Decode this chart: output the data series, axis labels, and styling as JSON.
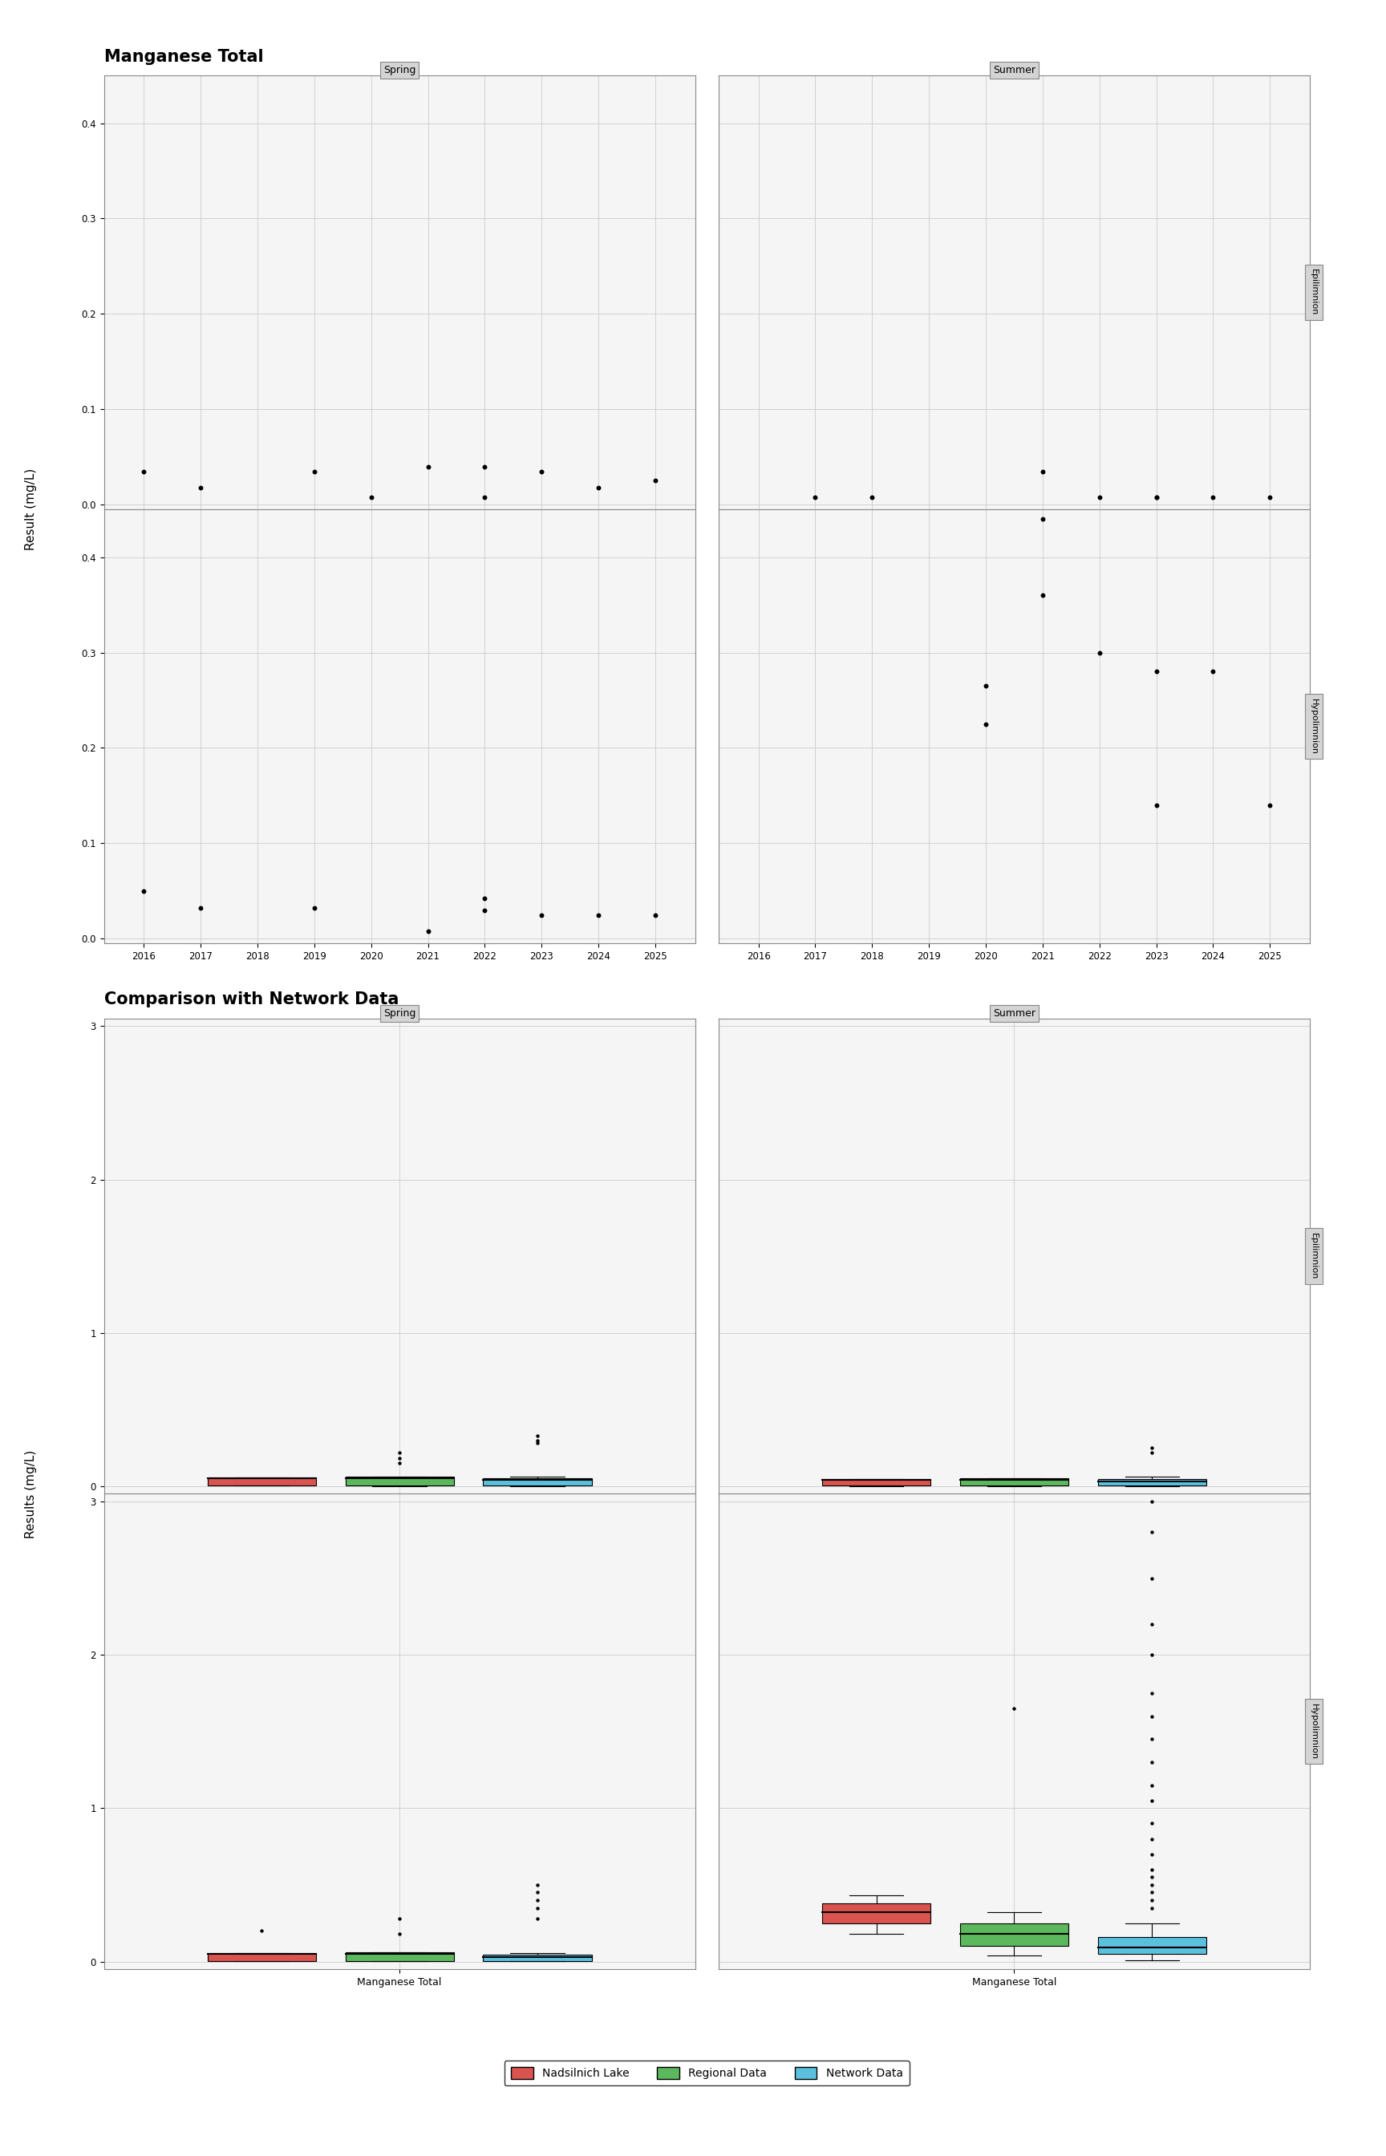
{
  "title1": "Manganese Total",
  "title2": "Comparison with Network Data",
  "ylabel1": "Result (mg/L)",
  "ylabel2": "Results (mg/L)",
  "season_labels": [
    "Spring",
    "Summer"
  ],
  "row_labels": [
    "Epilimnion",
    "Hypolimnion"
  ],
  "scatter_spring_epi": {
    "x": [
      2016,
      2017,
      2019,
      2020,
      2021,
      2022,
      2022,
      2023,
      2024,
      2025
    ],
    "y": [
      0.035,
      0.018,
      0.035,
      0.008,
      0.04,
      0.04,
      0.008,
      0.035,
      0.018,
      0.025
    ]
  },
  "scatter_summer_epi": {
    "x": [
      2017,
      2018,
      2021,
      2022,
      2023,
      2023,
      2024,
      2025
    ],
    "y": [
      0.008,
      0.008,
      0.035,
      0.008,
      0.008,
      0.008,
      0.008,
      0.008
    ]
  },
  "scatter_spring_hypo": {
    "x": [
      2016,
      2017,
      2019,
      2021,
      2022,
      2022,
      2023,
      2024,
      2025
    ],
    "y": [
      0.05,
      0.032,
      0.032,
      0.008,
      0.042,
      0.03,
      0.025,
      0.025,
      0.025
    ]
  },
  "scatter_summer_hypo": {
    "x": [
      2020,
      2020,
      2021,
      2021,
      2022,
      2023,
      2023,
      2024,
      2025
    ],
    "y": [
      0.265,
      0.225,
      0.36,
      0.44,
      0.3,
      0.28,
      0.14,
      0.28,
      0.14
    ]
  },
  "box_spring_epi_nad": {
    "q1": 0.005,
    "median": 0.05,
    "q3": 0.055,
    "whislo": 0.003,
    "whishi": 0.055,
    "fliers": []
  },
  "box_spring_epi_reg": {
    "q1": 0.005,
    "median": 0.05,
    "q3": 0.06,
    "whislo": 0.002,
    "whishi": 0.06,
    "fliers": [
      0.15,
      0.18,
      0.22
    ]
  },
  "box_spring_epi_net": {
    "q1": 0.003,
    "median": 0.04,
    "q3": 0.05,
    "whislo": 0.002,
    "whishi": 0.06,
    "fliers": [
      0.28,
      0.3,
      0.33
    ]
  },
  "box_summer_epi_nad": {
    "q1": 0.003,
    "median": 0.04,
    "q3": 0.045,
    "whislo": 0.002,
    "whishi": 0.045,
    "fliers": []
  },
  "box_summer_epi_reg": {
    "q1": 0.003,
    "median": 0.04,
    "q3": 0.05,
    "whislo": 0.002,
    "whishi": 0.05,
    "fliers": []
  },
  "box_summer_epi_net": {
    "q1": 0.003,
    "median": 0.03,
    "q3": 0.045,
    "whislo": 0.002,
    "whishi": 0.06,
    "fliers": [
      0.22,
      0.25
    ]
  },
  "box_spring_hypo_nad": {
    "q1": 0.005,
    "median": 0.05,
    "q3": 0.055,
    "whislo": 0.003,
    "whishi": 0.055,
    "fliers": [
      0.2
    ]
  },
  "box_spring_hypo_reg": {
    "q1": 0.005,
    "median": 0.05,
    "q3": 0.06,
    "whislo": 0.002,
    "whishi": 0.06,
    "fliers": [
      0.18,
      0.28
    ]
  },
  "box_spring_hypo_net": {
    "q1": 0.003,
    "median": 0.03,
    "q3": 0.045,
    "whislo": 0.002,
    "whishi": 0.055,
    "fliers": [
      0.28,
      0.35,
      0.4,
      0.45,
      0.5
    ]
  },
  "box_summer_hypo_nad": {
    "q1": 0.25,
    "median": 0.32,
    "q3": 0.38,
    "whislo": 0.18,
    "whishi": 0.43,
    "fliers": []
  },
  "box_summer_hypo_reg": {
    "q1": 0.1,
    "median": 0.18,
    "q3": 0.25,
    "whislo": 0.04,
    "whishi": 0.32,
    "fliers": [
      1.65
    ]
  },
  "box_summer_hypo_net": {
    "q1": 0.05,
    "median": 0.09,
    "q3": 0.16,
    "whislo": 0.01,
    "whishi": 0.25,
    "fliers": [
      0.35,
      0.4,
      0.45,
      0.5,
      0.55,
      0.6,
      0.7,
      0.8,
      0.9,
      1.05,
      1.15,
      1.3,
      1.45,
      1.6,
      1.75,
      2.0,
      2.2,
      2.5,
      2.8,
      3.0
    ]
  },
  "colors": {
    "nadsilnich": "#d9534f",
    "regional": "#5cb85c",
    "network": "#5bc0de",
    "scatter": "black",
    "strip_bg": "#d4d4d4",
    "panel_bg": "#f5f5f5",
    "grid": "#cccccc",
    "border": "#888888"
  },
  "legend_labels": [
    "Nadsilnich Lake",
    "Regional Data",
    "Network Data"
  ],
  "x_years": [
    2016,
    2017,
    2018,
    2019,
    2020,
    2021,
    2022,
    2023,
    2024,
    2025
  ]
}
